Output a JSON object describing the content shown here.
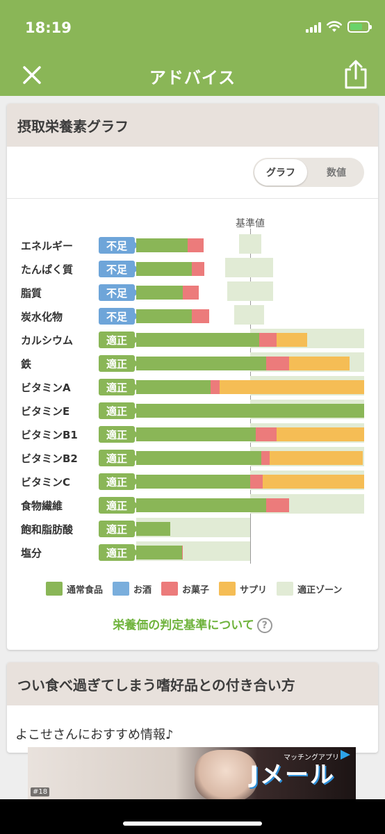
{
  "status": {
    "time": "18:19"
  },
  "nav": {
    "title": "アドバイス"
  },
  "colors": {
    "accent": "#8ab657",
    "food": "#8ab657",
    "alcohol": "#7aaedc",
    "sweets": "#ec7b7b",
    "supplement": "#f5bd55",
    "zone": "#e1ebd5",
    "badge_lack": "#6ea5d9",
    "badge_ok": "#8ab657"
  },
  "graph_card": {
    "title": "摂取栄養素グラフ",
    "toggle": {
      "graph": "グラフ",
      "numeric": "数値",
      "selected": "グラフ"
    },
    "reference_label": "基準値",
    "legend": [
      {
        "label": "通常食品",
        "color": "#8ab657"
      },
      {
        "label": "お酒",
        "color": "#7aaedc"
      },
      {
        "label": "お菓子",
        "color": "#ec7b7b"
      },
      {
        "label": "サプリ",
        "color": "#f5bd55"
      },
      {
        "label": "適正ゾーン",
        "color": "#e1ebd5"
      }
    ],
    "criteria_link": "栄養価の判定基準について",
    "criteria_icon": "question-circle-icon"
  },
  "chart_data": {
    "type": "bar",
    "orientation": "horizontal",
    "stacked": true,
    "reference_value": 100,
    "x_unit": "% of reference value",
    "categories": [
      "エネルギー",
      "たんぱく質",
      "脂質",
      "炭水化物",
      "カルシウム",
      "鉄",
      "ビタミンA",
      "ビタミンE",
      "ビタミンB1",
      "ビタミンB2",
      "ビタミンC",
      "食物繊維",
      "飽和脂肪酸",
      "塩分"
    ],
    "status": [
      "不足",
      "不足",
      "不足",
      "不足",
      "適正",
      "適正",
      "適正",
      "適正",
      "適正",
      "適正",
      "適正",
      "適正",
      "適正",
      "適正"
    ],
    "series": [
      {
        "name": "通常食品",
        "values": [
          45,
          49,
          41,
          49,
          108,
          114,
          65,
          200,
          105,
          110,
          100,
          114,
          30,
          40
        ]
      },
      {
        "name": "お菓子",
        "values": [
          14,
          11,
          14,
          15,
          15,
          20,
          8,
          0,
          18,
          7,
          11,
          20,
          0,
          1
        ]
      },
      {
        "name": "サプリ",
        "values": [
          0,
          0,
          0,
          0,
          27,
          53,
          127,
          0,
          77,
          82,
          89,
          0,
          0,
          0
        ]
      }
    ],
    "optimal_zone": [
      [
        90,
        110
      ],
      [
        78,
        120
      ],
      [
        80,
        120
      ],
      [
        86,
        112
      ],
      [
        100,
        200
      ],
      [
        100,
        200
      ],
      [
        100,
        200
      ],
      [
        100,
        200
      ],
      [
        100,
        200
      ],
      [
        100,
        200
      ],
      [
        100,
        200
      ],
      [
        100,
        200
      ],
      [
        0,
        100
      ],
      [
        0,
        100
      ]
    ]
  },
  "advice_card": {
    "title": "つい食べ過ぎてしまう嗜好品との付き合い方",
    "body": "よこせさんにおすすめ情報♪"
  },
  "ad": {
    "brand": "Jメール",
    "subtitle": "マッチングアプリ",
    "badge": "#18"
  }
}
